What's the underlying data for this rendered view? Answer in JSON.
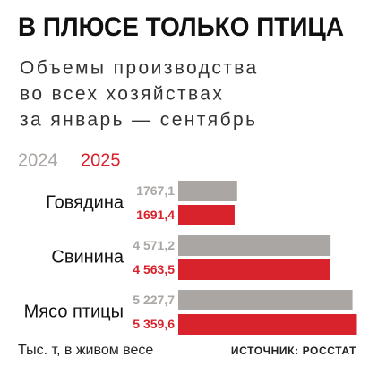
{
  "chart_data": {
    "type": "barh",
    "title": "В ПЛЮСЕ ТОЛЬКО ПТИЦА",
    "subtitle": [
      "Объемы производства",
      "во всех хозяйствах",
      "за январь — сентябрь"
    ],
    "categories": [
      "Говядина",
      "Свинина",
      "Мясо птицы"
    ],
    "series": [
      {
        "name": "2024",
        "color": "#a9a6a4",
        "values": [
          1767.1,
          4571.2,
          5227.7
        ],
        "value_labels": [
          "1767,1",
          "4 571,2",
          "5 227,7"
        ]
      },
      {
        "name": "2025",
        "color": "#d8222c",
        "values": [
          1691.4,
          4563.5,
          5359.6
        ],
        "value_labels": [
          "1691,4",
          "4 563,5",
          "5 359,6"
        ]
      }
    ],
    "xlim": [
      0,
      5400
    ],
    "note": "Тыс. т, в живом весе",
    "source": "ИСТОЧНИК: РОССТАТ"
  }
}
